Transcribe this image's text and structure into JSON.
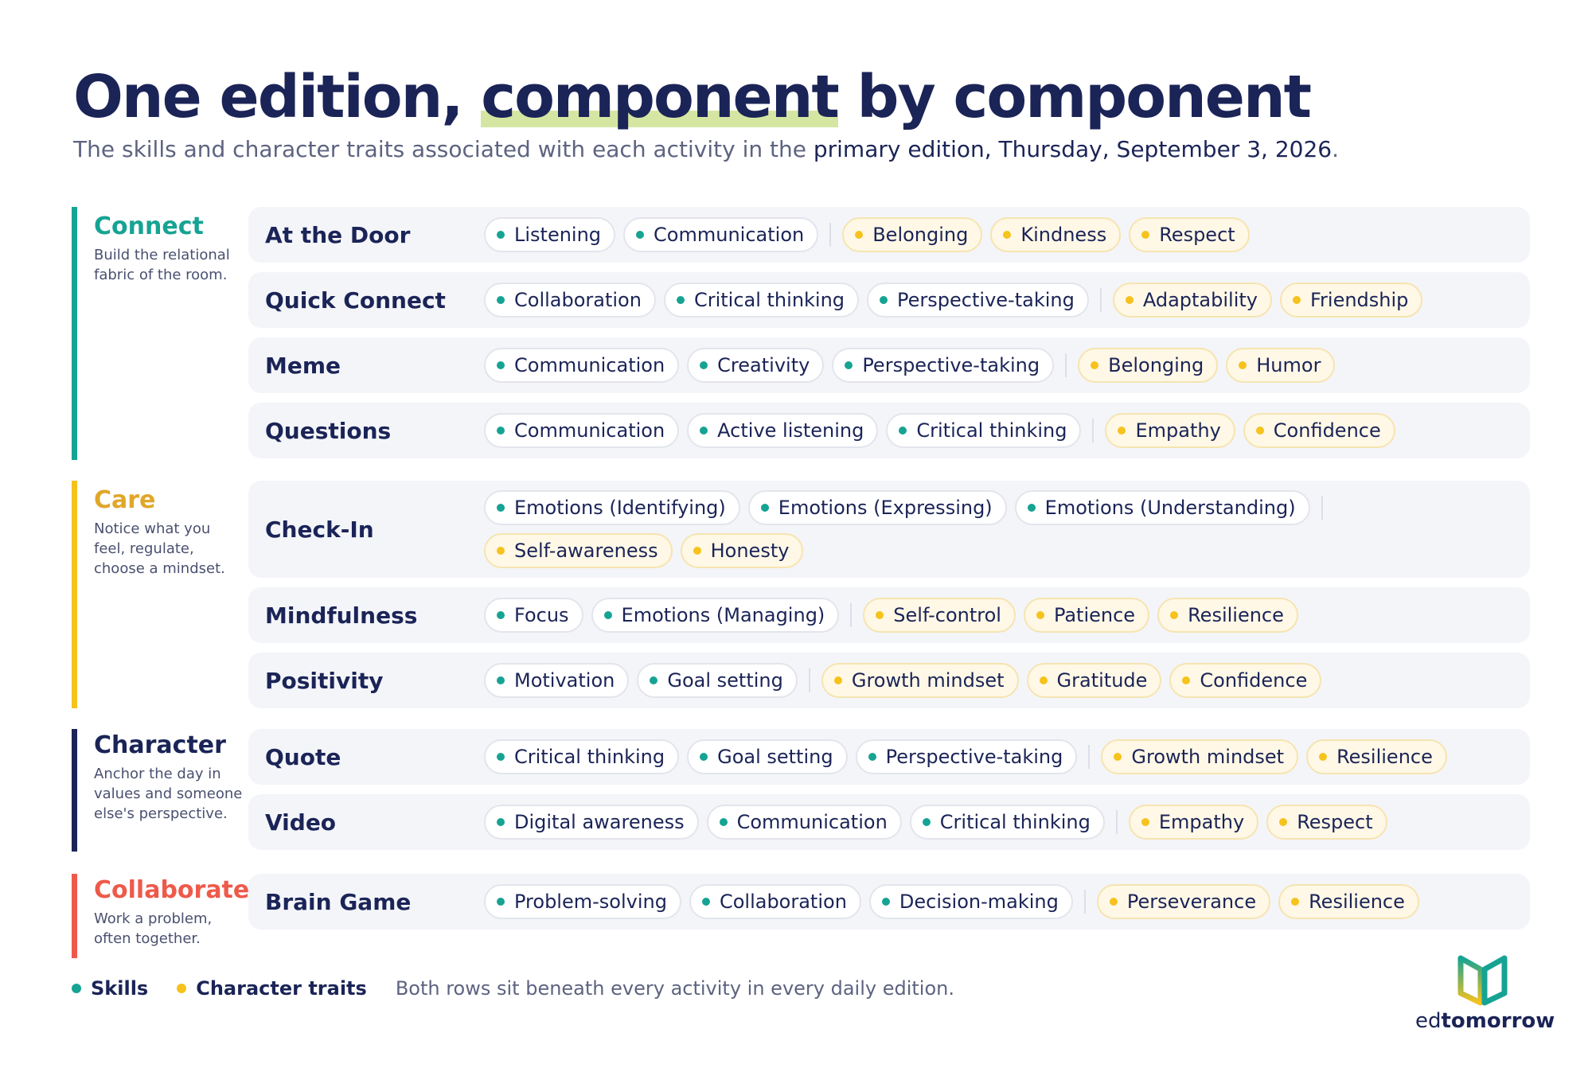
{
  "title": {
    "pre": "One edition, ",
    "highlight": "component",
    "post": " by component"
  },
  "subtitle": {
    "pre": "The skills and character traits associated with each activity in the ",
    "emphasis": "primary edition, Thursday, September 3, 2026",
    "post": "."
  },
  "colors": {
    "skill": "#16a393",
    "trait": "#f6c21c",
    "connect": "#16a393",
    "care": "#f6c21c",
    "character": "#1b2457",
    "collaborate": "#ee5a4a"
  },
  "groups": [
    {
      "name": "Connect",
      "color": "#16a393",
      "label_color": "#16a393",
      "desc": "Build the relational fabric of the room.",
      "rows": [
        {
          "activity": "At the Door",
          "skills": [
            "Listening",
            "Communication"
          ],
          "traits": [
            "Belonging",
            "Kindness",
            "Respect"
          ]
        },
        {
          "activity": "Quick Connect",
          "skills": [
            "Collaboration",
            "Critical thinking",
            "Perspective-taking"
          ],
          "traits": [
            "Adaptability",
            "Friendship"
          ]
        },
        {
          "activity": "Meme",
          "skills": [
            "Communication",
            "Creativity",
            "Perspective-taking"
          ],
          "traits": [
            "Belonging",
            "Humor"
          ]
        },
        {
          "activity": "Questions",
          "skills": [
            "Communication",
            "Active listening",
            "Critical thinking"
          ],
          "traits": [
            "Empathy",
            "Confidence"
          ]
        }
      ]
    },
    {
      "name": "Care",
      "color": "#f6c21c",
      "label_color": "#e0a728",
      "desc": "Notice what you feel, regulate, choose a mindset.",
      "rows": [
        {
          "activity": "Check-In",
          "skills": [
            "Emotions (Identifying)",
            "Emotions (Expressing)",
            "Emotions (Understanding)"
          ],
          "traits": [
            "Self-awareness",
            "Honesty"
          ]
        },
        {
          "activity": "Mindfulness",
          "skills": [
            "Focus",
            "Emotions (Managing)"
          ],
          "traits": [
            "Self-control",
            "Patience",
            "Resilience"
          ]
        },
        {
          "activity": "Positivity",
          "skills": [
            "Motivation",
            "Goal setting"
          ],
          "traits": [
            "Growth mindset",
            "Gratitude",
            "Confidence"
          ]
        }
      ]
    },
    {
      "name": "Character",
      "color": "#1b2457",
      "label_color": "#1b2457",
      "desc": "Anchor the day in values and someone else's perspective.",
      "rows": [
        {
          "activity": "Quote",
          "skills": [
            "Critical thinking",
            "Goal setting",
            "Perspective-taking"
          ],
          "traits": [
            "Growth mindset",
            "Resilience"
          ]
        },
        {
          "activity": "Video",
          "skills": [
            "Digital awareness",
            "Communication",
            "Critical thinking"
          ],
          "traits": [
            "Empathy",
            "Respect"
          ]
        }
      ]
    },
    {
      "name": "Collaborate",
      "color": "#ee5a4a",
      "label_color": "#ee5a4a",
      "desc": "Work a problem, often together.",
      "rows": [
        {
          "activity": "Brain Game",
          "skills": [
            "Problem-solving",
            "Collaboration",
            "Decision-making"
          ],
          "traits": [
            "Perseverance",
            "Resilience"
          ]
        }
      ]
    }
  ],
  "legend": {
    "skills": "Skills",
    "traits": "Character traits",
    "note": "Both rows sit beneath every activity in every daily edition."
  },
  "logo": {
    "pre": "ed",
    "bold": "tomorrow"
  }
}
